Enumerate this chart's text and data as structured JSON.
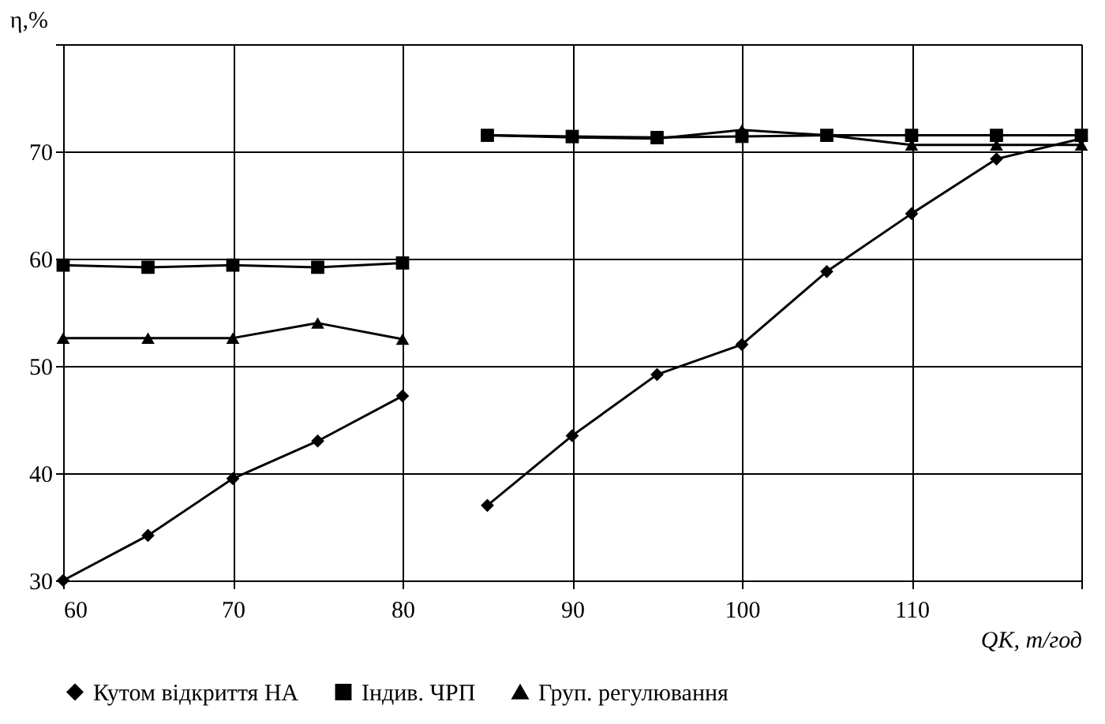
{
  "chart_data": {
    "type": "line",
    "xlabel": "QK, т/год",
    "ylabel": "η,%",
    "x": [
      60,
      65,
      70,
      75,
      80,
      82.5,
      85,
      90,
      95,
      100,
      105,
      110,
      115,
      120
    ],
    "xlim": [
      60,
      120
    ],
    "xticks": [
      60,
      70,
      80,
      90,
      100,
      110,
      {
        "value": 120,
        "label": null
      }
    ],
    "ylim": [
      30,
      80
    ],
    "yticks": [
      30,
      40,
      50,
      60,
      70,
      {
        "value": 80,
        "label": null
      }
    ],
    "grid": true,
    "legend": "bottom",
    "line_style": "solid",
    "series": [
      {
        "name": "Кутом відкриття НА",
        "color": "#000000",
        "marker": "diamond",
        "values": [
          30,
          34.2,
          39.5,
          43,
          47.2,
          null,
          37,
          43.5,
          49.2,
          52,
          58.8,
          64.2,
          69.3,
          71.2
        ]
      },
      {
        "name": "Індив. ЧРП",
        "color": "#000000",
        "marker": "square",
        "values": [
          59.4,
          59.2,
          59.4,
          59.2,
          59.6,
          null,
          71.5,
          71.4,
          71.3,
          71.4,
          71.5,
          71.5,
          71.5,
          71.5
        ]
      },
      {
        "name": "Груп. регулювання",
        "color": "#000000",
        "marker": "triangle",
        "values": [
          52.6,
          52.6,
          52.6,
          54,
          52.5,
          null,
          71.5,
          71.3,
          71.2,
          72,
          71.5,
          70.6,
          70.6,
          70.6
        ]
      }
    ]
  }
}
